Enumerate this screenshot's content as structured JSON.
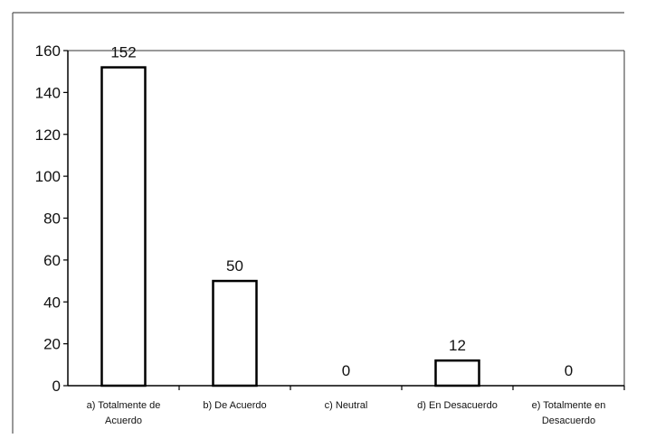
{
  "chart_data": {
    "type": "bar",
    "categories": [
      [
        "a) Totalmente de",
        "Acuerdo"
      ],
      [
        "b) De Acuerdo"
      ],
      [
        "c) Neutral"
      ],
      [
        "d) En Desacuerdo"
      ],
      [
        "e) Totalmente en",
        "Desacuerdo"
      ]
    ],
    "values": [
      152,
      50,
      0,
      12,
      0
    ],
    "data_labels": [
      "152",
      "50",
      "0",
      "12",
      "0"
    ],
    "ylim": [
      0,
      160
    ],
    "yticks": [
      0,
      20,
      40,
      60,
      80,
      100,
      120,
      140,
      160
    ],
    "title": "",
    "xlabel": "",
    "ylabel": "",
    "grid": false,
    "legend": "none",
    "colors": {
      "bar_fill": "#ffffff",
      "bar_stroke": "#000000",
      "axis": "#000000",
      "border": "#555555"
    }
  }
}
